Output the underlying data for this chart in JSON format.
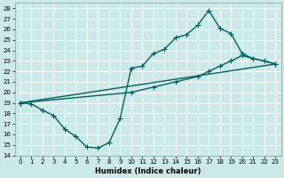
{
  "title": "",
  "xlabel": "Humidex (Indice chaleur)",
  "ylabel": "",
  "bg_color": "#cce9e9",
  "line_color": "#006060",
  "grid_color": "#ffffff",
  "xlim": [
    -0.5,
    23.5
  ],
  "ylim": [
    14,
    28.5
  ],
  "yticks": [
    14,
    15,
    16,
    17,
    18,
    19,
    20,
    21,
    22,
    23,
    24,
    25,
    26,
    27,
    28
  ],
  "xticks": [
    0,
    1,
    2,
    3,
    4,
    5,
    6,
    7,
    8,
    9,
    10,
    11,
    12,
    13,
    14,
    15,
    16,
    17,
    18,
    19,
    20,
    21,
    22,
    23
  ],
  "line1_x": [
    0,
    1,
    2,
    3,
    4,
    5,
    6,
    7,
    8,
    9,
    10,
    11,
    12,
    13,
    14,
    15,
    16,
    17,
    18,
    19,
    20,
    21,
    22,
    23
  ],
  "line1_y": [
    19.0,
    18.9,
    18.3,
    17.8,
    16.5,
    15.8,
    14.8,
    14.7,
    15.2,
    17.5,
    22.3,
    22.5,
    23.7,
    24.1,
    25.2,
    25.5,
    26.4,
    27.8,
    26.1,
    25.6,
    23.7,
    23.2,
    23.0,
    22.7
  ],
  "line2_x": [
    0,
    23
  ],
  "line2_y": [
    19.0,
    22.7
  ],
  "line3_x": [
    0,
    10,
    12,
    14,
    16,
    17,
    18,
    19,
    20,
    23
  ],
  "line3_y": [
    19.0,
    20.0,
    20.5,
    21.0,
    21.5,
    22.0,
    22.5,
    23.0,
    23.5,
    22.7
  ],
  "marker": "+",
  "markersize": 4,
  "linewidth": 1.0
}
